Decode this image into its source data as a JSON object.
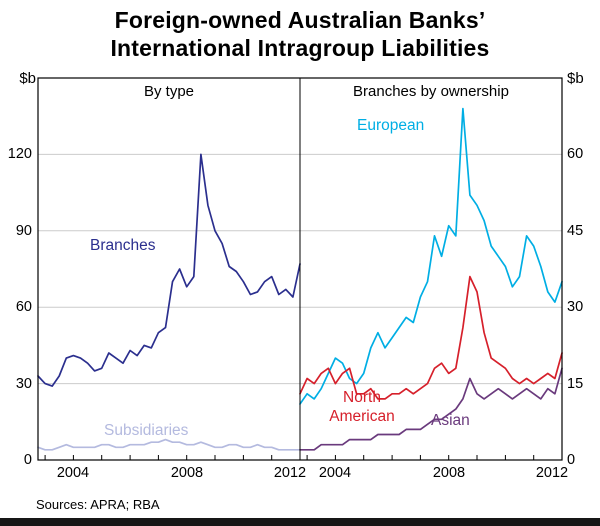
{
  "title": {
    "line1": "Foreign-owned Australian Banks’",
    "line2": "International Intragroup Liabilities"
  },
  "axes": {
    "left_unit": "$b",
    "right_unit": "$b"
  },
  "source_note": "Sources: APRA; RBA",
  "labels": {
    "north_american_line1": "North",
    "north_american_line2": "American"
  },
  "chart_data": [
    {
      "type": "line",
      "panel": "left",
      "panel_title": "By type",
      "ylabel": "$b",
      "ylim": [
        0,
        150
      ],
      "yticks": [
        0,
        30,
        60,
        90,
        120
      ],
      "xlim": [
        2002.75,
        2012.0
      ],
      "xtick_labels": [
        2004,
        2008,
        2012
      ],
      "grid": true,
      "x": [
        2002.75,
        2003.0,
        2003.25,
        2003.5,
        2003.75,
        2004.0,
        2004.25,
        2004.5,
        2004.75,
        2005.0,
        2005.25,
        2005.5,
        2005.75,
        2006.0,
        2006.25,
        2006.5,
        2006.75,
        2007.0,
        2007.25,
        2007.5,
        2007.75,
        2008.0,
        2008.25,
        2008.5,
        2008.75,
        2009.0,
        2009.25,
        2009.5,
        2009.75,
        2010.0,
        2010.25,
        2010.5,
        2010.75,
        2011.0,
        2011.25,
        2011.5,
        2011.75,
        2012.0
      ],
      "series": [
        {
          "name": "Branches",
          "color": "#2b2f8e",
          "values": [
            33,
            30,
            29,
            33,
            40,
            41,
            40,
            38,
            35,
            36,
            42,
            40,
            38,
            43,
            41,
            45,
            44,
            50,
            52,
            70,
            75,
            68,
            72,
            120,
            100,
            90,
            85,
            76,
            74,
            70,
            65,
            66,
            70,
            72,
            65,
            67,
            64,
            77
          ]
        },
        {
          "name": "Subsidiaries",
          "color": "#b4badf",
          "values": [
            5,
            4,
            4,
            5,
            6,
            5,
            5,
            5,
            5,
            6,
            6,
            5,
            5,
            6,
            6,
            6,
            7,
            7,
            8,
            7,
            7,
            6,
            6,
            7,
            6,
            5,
            5,
            6,
            6,
            5,
            5,
            6,
            5,
            5,
            4,
            4,
            4,
            4
          ]
        }
      ]
    },
    {
      "type": "line",
      "panel": "right",
      "panel_title": "Branches by ownership",
      "ylabel": "$b",
      "ylim": [
        0,
        75
      ],
      "yticks": [
        0,
        15,
        30,
        45,
        60
      ],
      "xlim": [
        2002.75,
        2012.0
      ],
      "xtick_labels": [
        2004,
        2008,
        2012
      ],
      "grid": true,
      "x": [
        2002.75,
        2003.0,
        2003.25,
        2003.5,
        2003.75,
        2004.0,
        2004.25,
        2004.5,
        2004.75,
        2005.0,
        2005.25,
        2005.5,
        2005.75,
        2006.0,
        2006.25,
        2006.5,
        2006.75,
        2007.0,
        2007.25,
        2007.5,
        2007.75,
        2008.0,
        2008.25,
        2008.5,
        2008.75,
        2009.0,
        2009.25,
        2009.5,
        2009.75,
        2010.0,
        2010.25,
        2010.5,
        2010.75,
        2011.0,
        2011.25,
        2011.5,
        2011.75,
        2012.0
      ],
      "series": [
        {
          "name": "European",
          "color": "#00aee4",
          "values": [
            11,
            13,
            12,
            14,
            17,
            20,
            19,
            16,
            15,
            17,
            22,
            25,
            22,
            24,
            26,
            28,
            27,
            32,
            35,
            44,
            40,
            46,
            44,
            69,
            52,
            50,
            47,
            42,
            40,
            38,
            34,
            36,
            44,
            42,
            38,
            33,
            31,
            35
          ]
        },
        {
          "name": "North American",
          "color": "#d6202b",
          "values": [
            13,
            16,
            15,
            17,
            18,
            15,
            17,
            18,
            13,
            13,
            14,
            12,
            12,
            13,
            13,
            14,
            13,
            14,
            15,
            18,
            19,
            17,
            18,
            26,
            36,
            33,
            25,
            20,
            19,
            18,
            16,
            15,
            16,
            15,
            16,
            17,
            16,
            21
          ]
        },
        {
          "name": "Asian",
          "color": "#6a3a7d",
          "values": [
            2,
            2,
            2,
            3,
            3,
            3,
            3,
            4,
            4,
            4,
            4,
            5,
            5,
            5,
            5,
            6,
            6,
            6,
            7,
            8,
            8,
            9,
            10,
            12,
            16,
            13,
            12,
            13,
            14,
            13,
            12,
            13,
            14,
            13,
            12,
            14,
            13,
            18
          ]
        }
      ]
    }
  ]
}
